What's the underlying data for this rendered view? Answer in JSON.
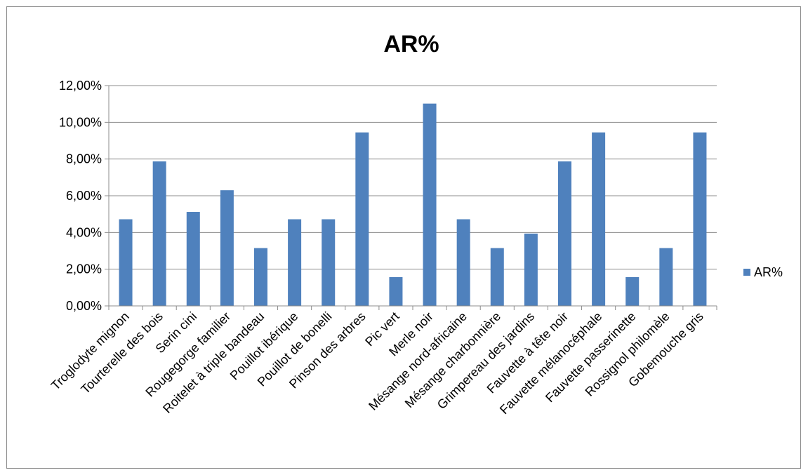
{
  "chart_data": {
    "type": "bar",
    "title": "AR%",
    "xlabel": "",
    "ylabel": "",
    "categories": [
      "Troglodyte mignon",
      "Tourterelle des bois",
      "Serin cini",
      "Rougegorge familier",
      "Roitelet à triple bandeau",
      "Pouillot ibérique",
      "Pouillot de bonelli",
      "Pinson des arbres",
      "Pic vert",
      "Merle noir",
      "Mésange nord-africaine",
      "Mésange charbonnière",
      "Grimpereau des jardins",
      "Fauvette à tête noir",
      "Fauvette mélanocéphale",
      "Fauvette passerinette",
      "Rossignol philomèle",
      "Gobemouche gris"
    ],
    "series": [
      {
        "name": "AR%",
        "color": "#4f81bd",
        "values": [
          4.72,
          7.87,
          5.12,
          6.3,
          3.15,
          4.72,
          4.72,
          9.45,
          1.57,
          11.02,
          4.72,
          3.15,
          3.94,
          7.87,
          9.45,
          1.57,
          3.15,
          9.45
        ]
      }
    ],
    "yticks": [
      "0,00%",
      "2,00%",
      "4,00%",
      "6,00%",
      "8,00%",
      "10,00%",
      "12,00%"
    ],
    "ylim": [
      0,
      12
    ],
    "grid": true,
    "legend_position": "right"
  }
}
